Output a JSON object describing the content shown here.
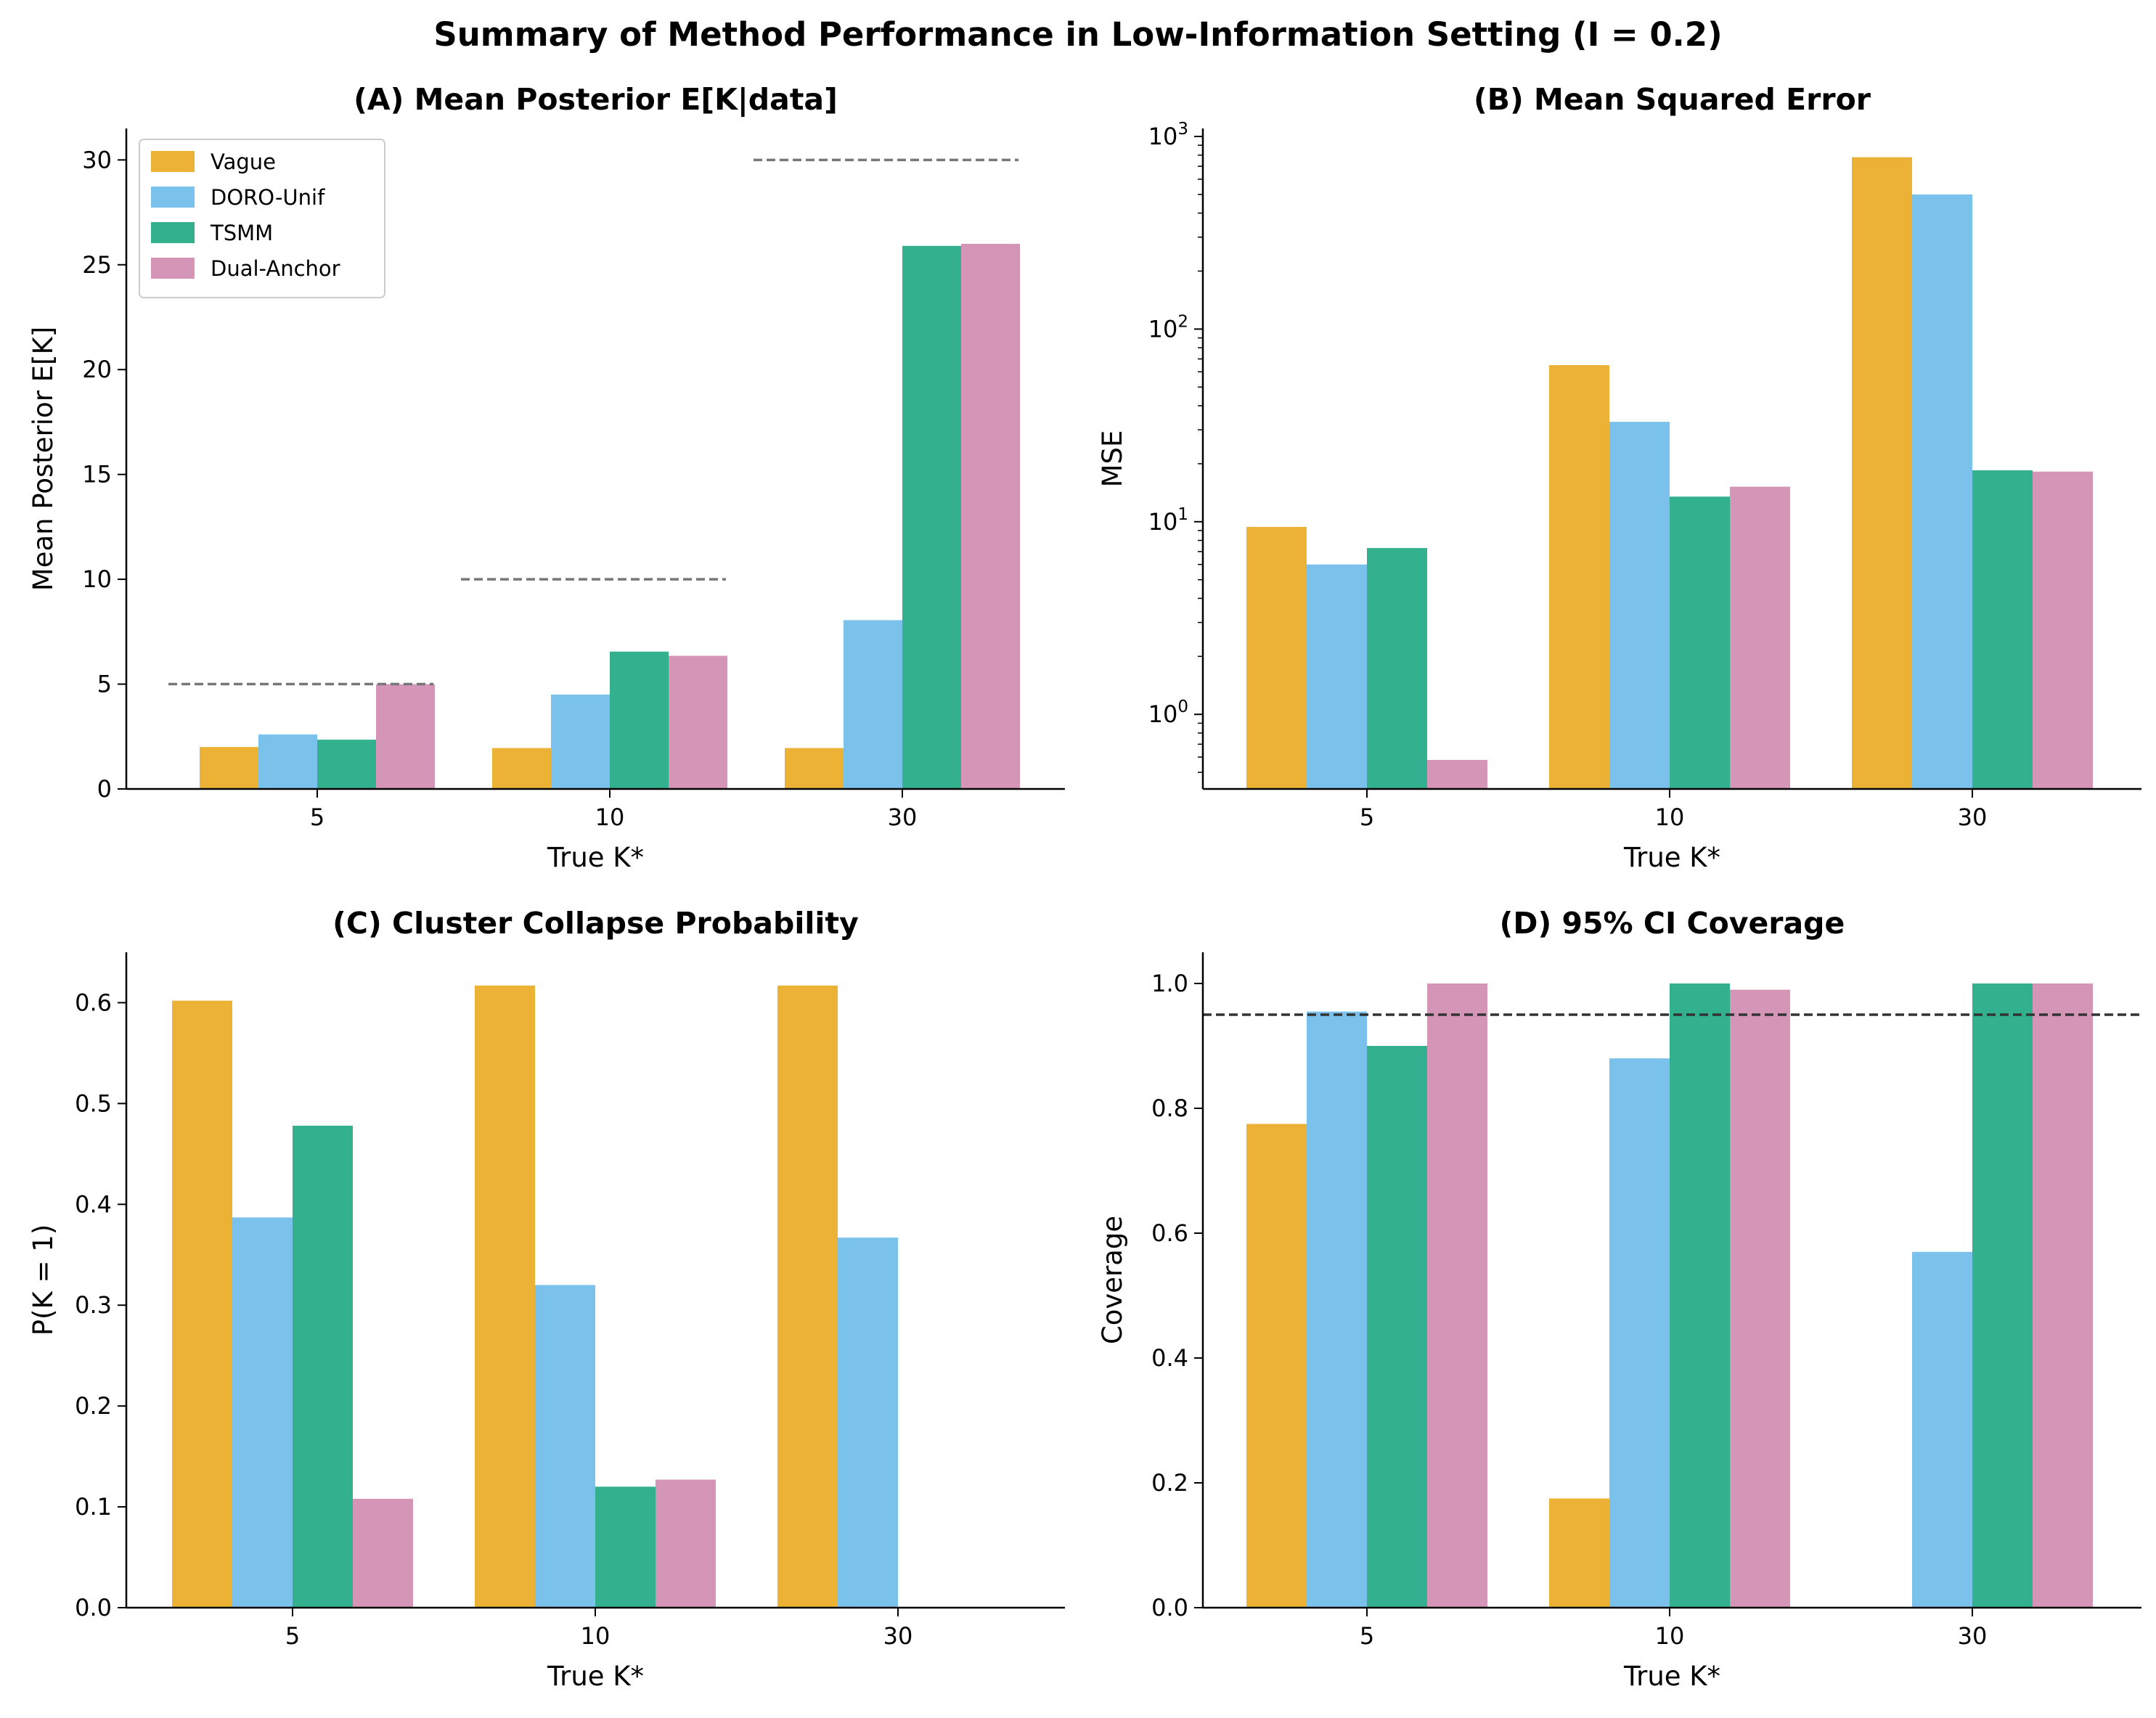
{
  "figure": {
    "suptitle": "Summary of Method Performance in Low-Information Setting (I = 0.2)"
  },
  "colors": {
    "Vague": "#EBB236",
    "DORO-Unif": "#7AC2EB",
    "TSMM": "#33B08E",
    "Dual-Anchor": "#D595B6",
    "reference": "#777777",
    "coverage_target": "#333333"
  },
  "legend": {
    "placement": "upper-left",
    "panel": "A",
    "entries": [
      "Vague",
      "DORO-Unif",
      "TSMM",
      "Dual-Anchor"
    ]
  },
  "chart_data": [
    {
      "id": "A",
      "type": "bar",
      "title": "(A) Mean Posterior E[K|data]",
      "xlabel": "True K*",
      "ylabel": "Mean Posterior E[K]",
      "categories": [
        "5",
        "10",
        "30"
      ],
      "ylim": [
        0,
        31.5
      ],
      "yticks": [
        0,
        5,
        10,
        15,
        20,
        25,
        30
      ],
      "scale": "linear",
      "grid": false,
      "series": [
        {
          "name": "Vague",
          "values": [
            2.0,
            1.95,
            1.95
          ]
        },
        {
          "name": "DORO-Unif",
          "values": [
            2.6,
            4.5,
            8.05
          ]
        },
        {
          "name": "TSMM",
          "values": [
            2.35,
            6.55,
            25.9
          ]
        },
        {
          "name": "Dual-Anchor",
          "values": [
            5.0,
            6.35,
            26.0
          ]
        }
      ],
      "reference_lines": [
        {
          "category": "5",
          "value": 5
        },
        {
          "category": "10",
          "value": 10
        },
        {
          "category": "30",
          "value": 30
        }
      ]
    },
    {
      "id": "B",
      "type": "bar",
      "title": "(B) Mean Squared Error",
      "xlabel": "True K*",
      "ylabel": "MSE",
      "categories": [
        "5",
        "10",
        "30"
      ],
      "scale": "log",
      "ylim": [
        0.41,
        1100
      ],
      "yticks": [
        {
          "base": "10",
          "exp": "0",
          "value": 1
        },
        {
          "base": "10",
          "exp": "1",
          "value": 10
        },
        {
          "base": "10",
          "exp": "2",
          "value": 100
        },
        {
          "base": "10",
          "exp": "3",
          "value": 1000
        }
      ],
      "grid": false,
      "series": [
        {
          "name": "Vague",
          "values": [
            9.4,
            65,
            780
          ]
        },
        {
          "name": "DORO-Unif",
          "values": [
            6.0,
            33,
            500
          ]
        },
        {
          "name": "TSMM",
          "values": [
            7.3,
            13.5,
            18.5
          ]
        },
        {
          "name": "Dual-Anchor",
          "values": [
            0.58,
            15.2,
            18.2
          ]
        }
      ]
    },
    {
      "id": "C",
      "type": "bar",
      "title": "(C) Cluster Collapse Probability",
      "xlabel": "True K*",
      "ylabel": "P(K = 1)",
      "categories": [
        "5",
        "10",
        "30"
      ],
      "ylim": [
        0,
        0.65
      ],
      "yticks": [
        0.0,
        0.1,
        0.2,
        0.3,
        0.4,
        0.5,
        0.6
      ],
      "scale": "linear",
      "grid": false,
      "series": [
        {
          "name": "Vague",
          "values": [
            0.602,
            0.617,
            0.617
          ]
        },
        {
          "name": "DORO-Unif",
          "values": [
            0.387,
            0.32,
            0.367
          ]
        },
        {
          "name": "TSMM",
          "values": [
            0.478,
            0.12,
            0.0
          ]
        },
        {
          "name": "Dual-Anchor",
          "values": [
            0.108,
            0.127,
            0.0
          ]
        }
      ]
    },
    {
      "id": "D",
      "type": "bar",
      "title": "(D) 95% CI Coverage",
      "xlabel": "True K*",
      "ylabel": "Coverage",
      "categories": [
        "5",
        "10",
        "30"
      ],
      "ylim": [
        0,
        1.05
      ],
      "yticks": [
        0.0,
        0.2,
        0.4,
        0.6,
        0.8,
        1.0
      ],
      "scale": "linear",
      "grid": false,
      "series": [
        {
          "name": "Vague",
          "values": [
            0.775,
            0.175,
            0.0
          ]
        },
        {
          "name": "DORO-Unif",
          "values": [
            0.955,
            0.88,
            0.57
          ]
        },
        {
          "name": "TSMM",
          "values": [
            0.9,
            1.0,
            1.0
          ]
        },
        {
          "name": "Dual-Anchor",
          "values": [
            1.0,
            0.99,
            1.0
          ]
        }
      ],
      "hline": {
        "value": 0.95
      }
    }
  ]
}
